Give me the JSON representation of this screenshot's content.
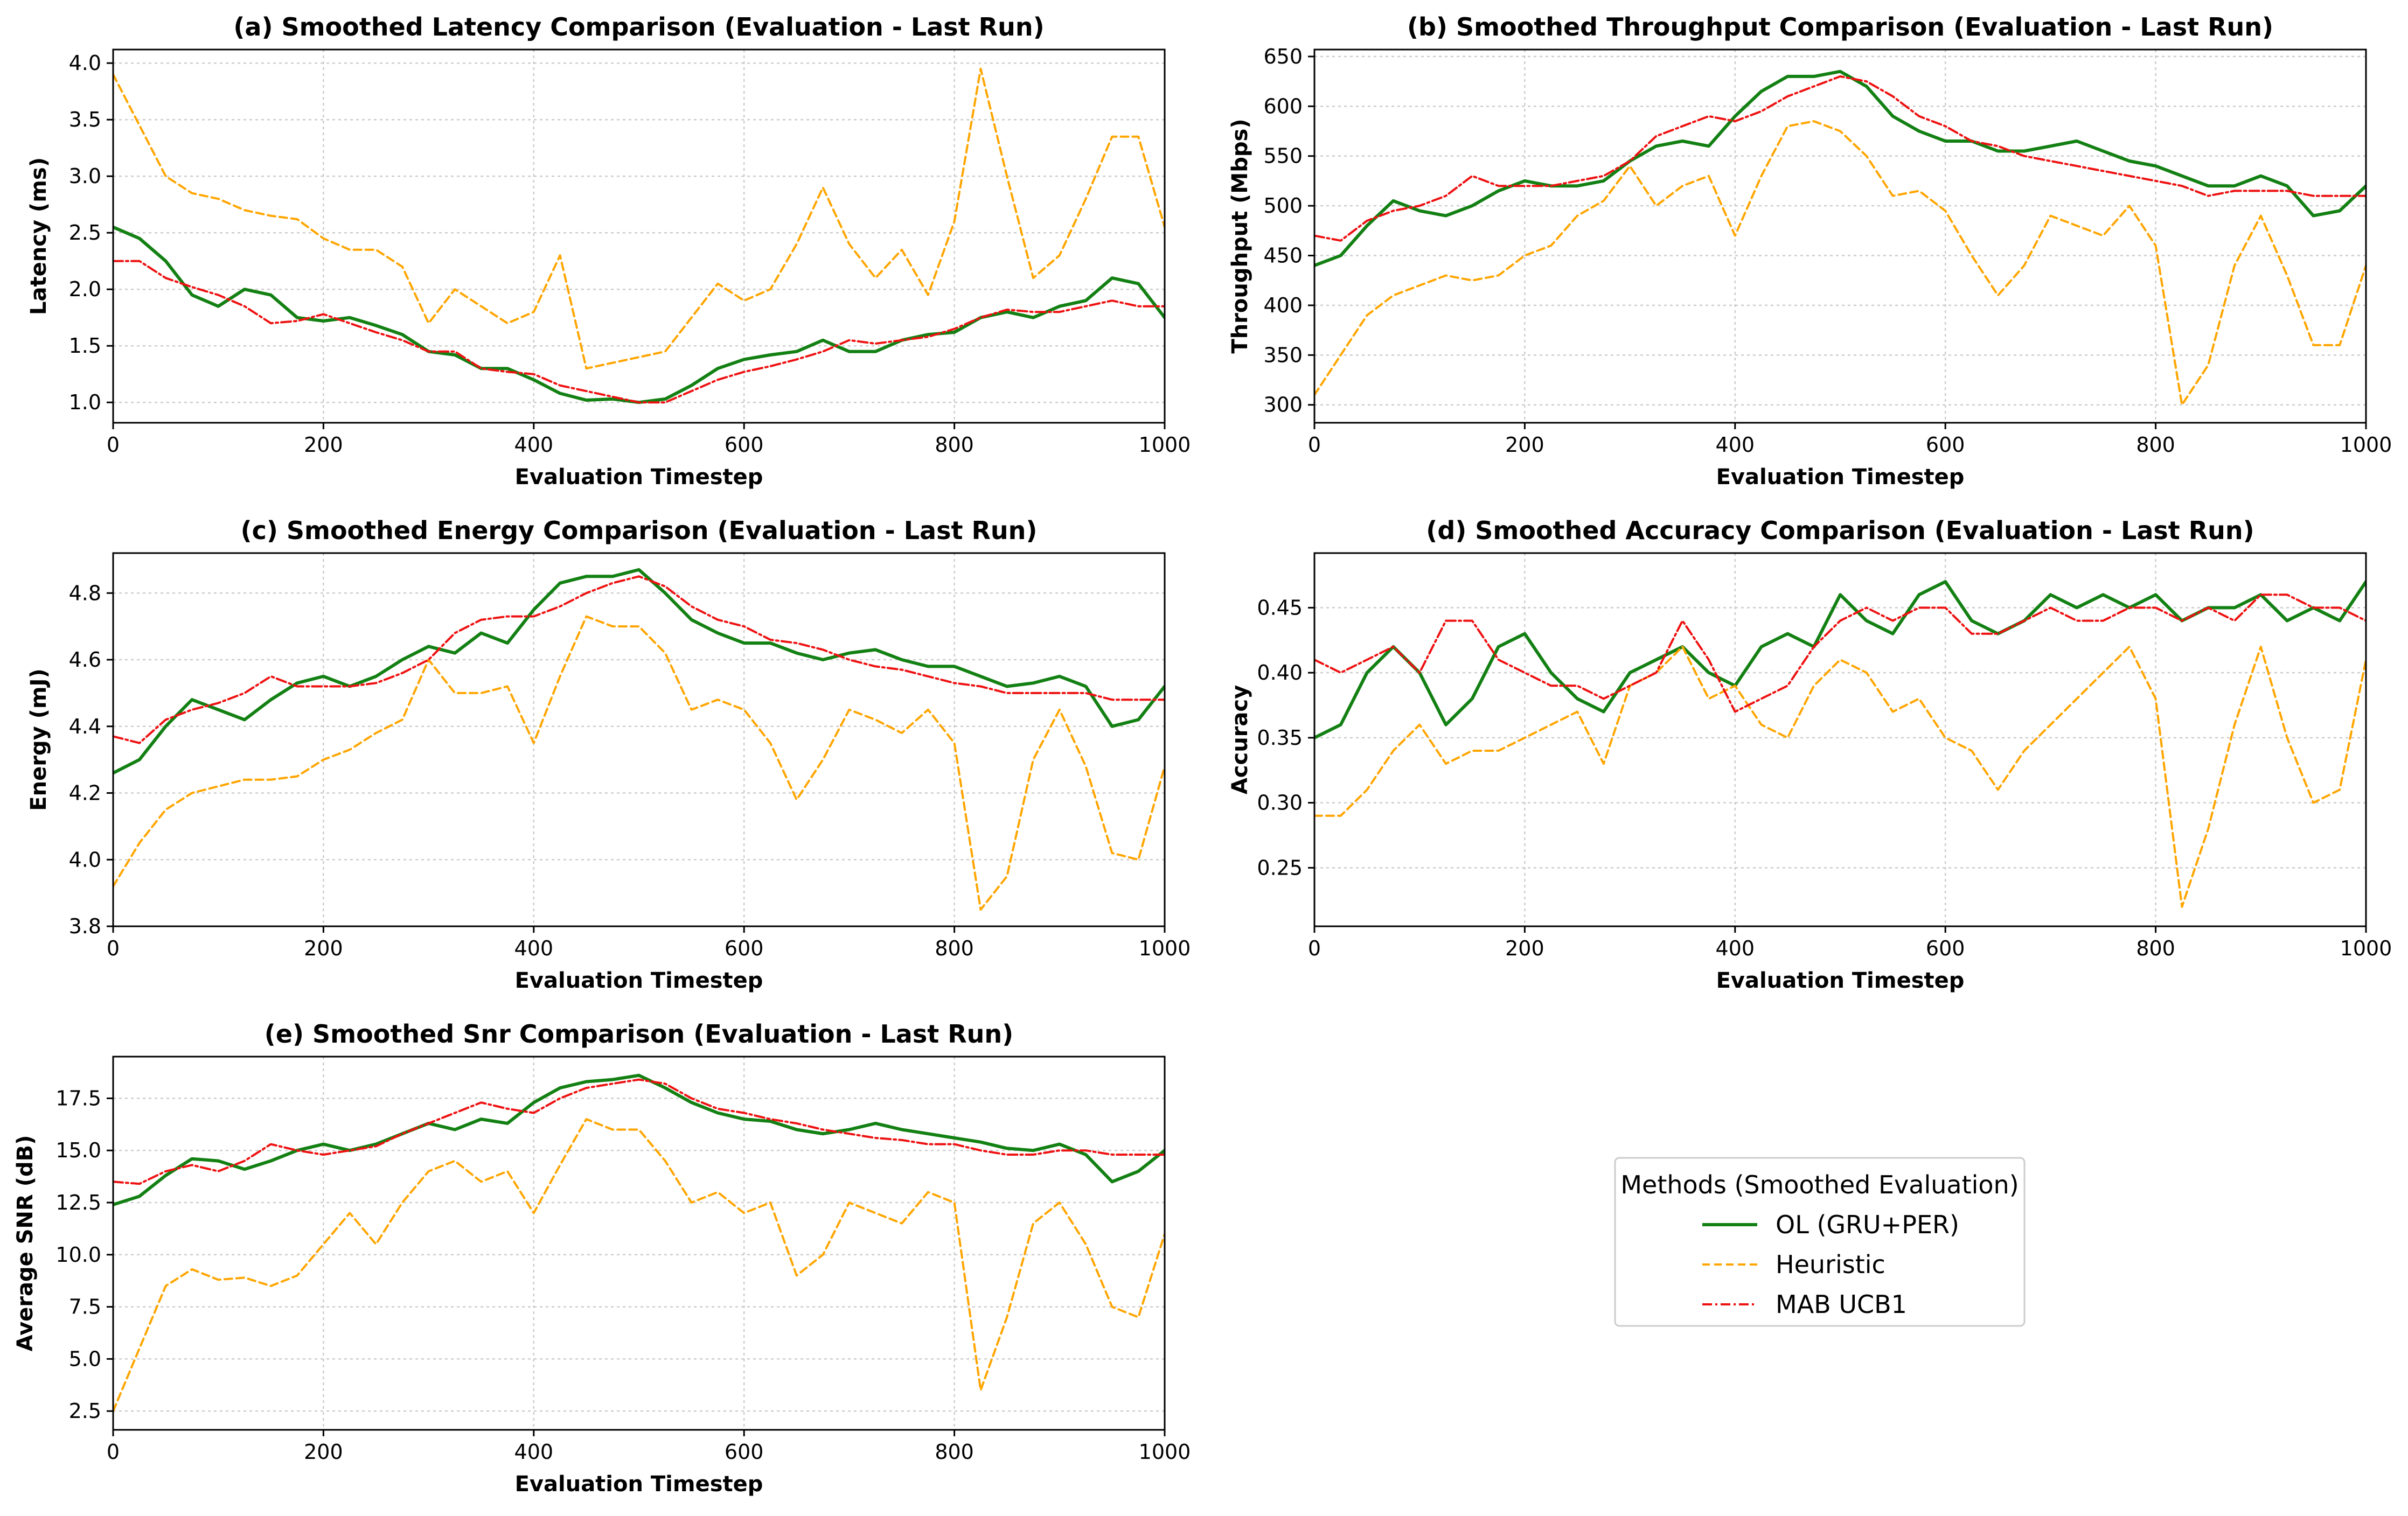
{
  "series_styles": [
    {
      "key": "ol",
      "name": "OL (GRU+PER)",
      "color": "#138013",
      "dash": "",
      "width": 6
    },
    {
      "key": "heuristic",
      "name": "Heuristic",
      "color": "#ffa500",
      "dash": "14 8",
      "width": 4
    },
    {
      "key": "mab",
      "name": "MAB UCB1",
      "color": "#ee1111",
      "dash": "18 6 4 6",
      "width": 4
    }
  ],
  "legend": {
    "title": "Methods (Smoothed Evaluation)",
    "entries": [
      "OL (GRU+PER)",
      "Heuristic",
      "MAB UCB1"
    ]
  },
  "chart_data": [
    {
      "id": "a",
      "type": "line",
      "title": "(a) Smoothed Latency Comparison (Evaluation - Last Run)",
      "xlabel": "Evaluation Timestep",
      "ylabel": "Latency (ms)",
      "xlim": [
        0,
        1000
      ],
      "ylim": [
        0.82,
        4.12
      ],
      "xticks": [
        0,
        200,
        400,
        600,
        800,
        1000
      ],
      "yticks": [
        1.0,
        1.5,
        2.0,
        2.5,
        3.0,
        3.5,
        4.0
      ],
      "ytick_labels": [
        "1.0",
        "1.5",
        "2.0",
        "2.5",
        "3.0",
        "3.5",
        "4.0"
      ],
      "x": [
        0,
        25,
        50,
        75,
        100,
        125,
        150,
        175,
        200,
        225,
        250,
        275,
        300,
        325,
        350,
        375,
        400,
        425,
        450,
        475,
        500,
        525,
        550,
        575,
        600,
        625,
        650,
        675,
        700,
        725,
        750,
        775,
        800,
        825,
        850,
        875,
        900,
        925,
        950,
        975,
        1000
      ],
      "series": [
        {
          "name": "OL (GRU+PER)",
          "values": [
            2.55,
            2.45,
            2.25,
            1.95,
            1.85,
            2.0,
            1.95,
            1.75,
            1.72,
            1.75,
            1.68,
            1.6,
            1.45,
            1.42,
            1.3,
            1.3,
            1.2,
            1.08,
            1.02,
            1.03,
            1.0,
            1.03,
            1.15,
            1.3,
            1.38,
            1.42,
            1.45,
            1.55,
            1.45,
            1.45,
            1.55,
            1.6,
            1.62,
            1.75,
            1.8,
            1.75,
            1.85,
            1.9,
            2.1,
            2.05,
            1.75
          ]
        },
        {
          "name": "Heuristic",
          "values": [
            3.9,
            3.45,
            3.0,
            2.85,
            2.8,
            2.7,
            2.65,
            2.62,
            2.45,
            2.35,
            2.35,
            2.2,
            1.7,
            2.0,
            1.85,
            1.7,
            1.8,
            2.3,
            1.3,
            1.35,
            1.4,
            1.45,
            1.75,
            2.05,
            1.9,
            2.0,
            2.4,
            2.9,
            2.4,
            2.1,
            2.35,
            1.95,
            2.6,
            3.95,
            3.0,
            2.1,
            2.3,
            2.8,
            3.35,
            3.35,
            2.55
          ]
        },
        {
          "name": "MAB UCB1",
          "values": [
            2.25,
            2.25,
            2.1,
            2.02,
            1.95,
            1.85,
            1.7,
            1.72,
            1.78,
            1.7,
            1.62,
            1.55,
            1.45,
            1.45,
            1.3,
            1.27,
            1.25,
            1.15,
            1.1,
            1.05,
            1.0,
            1.0,
            1.1,
            1.2,
            1.27,
            1.32,
            1.38,
            1.45,
            1.55,
            1.52,
            1.55,
            1.58,
            1.65,
            1.75,
            1.82,
            1.8,
            1.8,
            1.85,
            1.9,
            1.85,
            1.85
          ]
        }
      ]
    },
    {
      "id": "b",
      "type": "line",
      "title": "(b) Smoothed Throughput Comparison (Evaluation - Last Run)",
      "xlabel": "Evaluation Timestep",
      "ylabel": "Throughput (Mbps)",
      "xlim": [
        0,
        1000
      ],
      "ylim": [
        282,
        657
      ],
      "xticks": [
        0,
        200,
        400,
        600,
        800,
        1000
      ],
      "yticks": [
        300,
        350,
        400,
        450,
        500,
        550,
        600,
        650
      ],
      "ytick_labels": [
        "300",
        "350",
        "400",
        "450",
        "500",
        "550",
        "600",
        "650"
      ],
      "x": [
        0,
        25,
        50,
        75,
        100,
        125,
        150,
        175,
        200,
        225,
        250,
        275,
        300,
        325,
        350,
        375,
        400,
        425,
        450,
        475,
        500,
        525,
        550,
        575,
        600,
        625,
        650,
        675,
        700,
        725,
        750,
        775,
        800,
        825,
        850,
        875,
        900,
        925,
        950,
        975,
        1000
      ],
      "series": [
        {
          "name": "OL (GRU+PER)",
          "values": [
            440,
            450,
            480,
            505,
            495,
            490,
            500,
            515,
            525,
            520,
            520,
            525,
            545,
            560,
            565,
            560,
            590,
            615,
            630,
            630,
            635,
            620,
            590,
            575,
            565,
            565,
            555,
            555,
            560,
            565,
            555,
            545,
            540,
            530,
            520,
            520,
            530,
            520,
            490,
            495,
            520
          ]
        },
        {
          "name": "Heuristic",
          "values": [
            310,
            350,
            390,
            410,
            420,
            430,
            425,
            430,
            450,
            460,
            490,
            505,
            540,
            500,
            520,
            530,
            470,
            530,
            580,
            585,
            575,
            550,
            510,
            515,
            495,
            450,
            410,
            440,
            490,
            480,
            470,
            500,
            460,
            300,
            340,
            440,
            490,
            430,
            360,
            360,
            440
          ]
        },
        {
          "name": "MAB UCB1",
          "values": [
            470,
            465,
            485,
            495,
            500,
            510,
            530,
            520,
            520,
            520,
            525,
            530,
            545,
            570,
            580,
            590,
            585,
            595,
            610,
            620,
            630,
            625,
            610,
            590,
            580,
            565,
            560,
            550,
            545,
            540,
            535,
            530,
            525,
            520,
            510,
            515,
            515,
            515,
            510,
            510,
            510
          ]
        }
      ]
    },
    {
      "id": "c",
      "type": "line",
      "title": "(c) Smoothed Energy Comparison (Evaluation - Last Run)",
      "xlabel": "Evaluation Timestep",
      "ylabel": "Energy (mJ)",
      "xlim": [
        0,
        1000
      ],
      "ylim": [
        3.8,
        4.92
      ],
      "xticks": [
        0,
        200,
        400,
        600,
        800,
        1000
      ],
      "yticks": [
        3.8,
        4.0,
        4.2,
        4.4,
        4.6,
        4.8
      ],
      "ytick_labels": [
        "3.8",
        "4.0",
        "4.2",
        "4.4",
        "4.6",
        "4.8"
      ],
      "x": [
        0,
        25,
        50,
        75,
        100,
        125,
        150,
        175,
        200,
        225,
        250,
        275,
        300,
        325,
        350,
        375,
        400,
        425,
        450,
        475,
        500,
        525,
        550,
        575,
        600,
        625,
        650,
        675,
        700,
        725,
        750,
        775,
        800,
        825,
        850,
        875,
        900,
        925,
        950,
        975,
        1000
      ],
      "series": [
        {
          "name": "OL (GRU+PER)",
          "values": [
            4.26,
            4.3,
            4.4,
            4.48,
            4.45,
            4.42,
            4.48,
            4.53,
            4.55,
            4.52,
            4.55,
            4.6,
            4.64,
            4.62,
            4.68,
            4.65,
            4.75,
            4.83,
            4.85,
            4.85,
            4.87,
            4.8,
            4.72,
            4.68,
            4.65,
            4.65,
            4.62,
            4.6,
            4.62,
            4.63,
            4.6,
            4.58,
            4.58,
            4.55,
            4.52,
            4.53,
            4.55,
            4.52,
            4.4,
            4.42,
            4.52
          ]
        },
        {
          "name": "Heuristic",
          "values": [
            3.92,
            4.05,
            4.15,
            4.2,
            4.22,
            4.24,
            4.24,
            4.25,
            4.3,
            4.33,
            4.38,
            4.42,
            4.6,
            4.5,
            4.5,
            4.52,
            4.35,
            4.55,
            4.73,
            4.7,
            4.7,
            4.62,
            4.45,
            4.48,
            4.45,
            4.35,
            4.18,
            4.3,
            4.45,
            4.42,
            4.38,
            4.45,
            4.35,
            3.85,
            3.95,
            4.3,
            4.45,
            4.28,
            4.02,
            4.0,
            4.28
          ]
        },
        {
          "name": "MAB UCB1",
          "values": [
            4.37,
            4.35,
            4.42,
            4.45,
            4.47,
            4.5,
            4.55,
            4.52,
            4.52,
            4.52,
            4.53,
            4.56,
            4.6,
            4.68,
            4.72,
            4.73,
            4.73,
            4.76,
            4.8,
            4.83,
            4.85,
            4.82,
            4.76,
            4.72,
            4.7,
            4.66,
            4.65,
            4.63,
            4.6,
            4.58,
            4.57,
            4.55,
            4.53,
            4.52,
            4.5,
            4.5,
            4.5,
            4.5,
            4.48,
            4.48,
            4.48
          ]
        }
      ]
    },
    {
      "id": "d",
      "type": "line",
      "title": "(d) Smoothed Accuracy Comparison (Evaluation - Last Run)",
      "xlabel": "Evaluation Timestep",
      "ylabel": "Accuracy",
      "xlim": [
        0,
        1000
      ],
      "ylim": [
        0.205,
        0.492
      ],
      "xticks": [
        0,
        200,
        400,
        600,
        800,
        1000
      ],
      "yticks": [
        0.25,
        0.3,
        0.35,
        0.4,
        0.45
      ],
      "ytick_labels": [
        "0.25",
        "0.30",
        "0.35",
        "0.40",
        "0.45"
      ],
      "x": [
        0,
        25,
        50,
        75,
        100,
        125,
        150,
        175,
        200,
        225,
        250,
        275,
        300,
        325,
        350,
        375,
        400,
        425,
        450,
        475,
        500,
        525,
        550,
        575,
        600,
        625,
        650,
        675,
        700,
        725,
        750,
        775,
        800,
        825,
        850,
        875,
        900,
        925,
        950,
        975,
        1000
      ],
      "series": [
        {
          "name": "OL (GRU+PER)",
          "values": [
            0.35,
            0.36,
            0.4,
            0.42,
            0.4,
            0.36,
            0.38,
            0.42,
            0.43,
            0.4,
            0.38,
            0.37,
            0.4,
            0.41,
            0.42,
            0.4,
            0.39,
            0.42,
            0.43,
            0.42,
            0.46,
            0.44,
            0.43,
            0.46,
            0.47,
            0.44,
            0.43,
            0.44,
            0.46,
            0.45,
            0.46,
            0.45,
            0.46,
            0.44,
            0.45,
            0.45,
            0.46,
            0.44,
            0.45,
            0.44,
            0.47
          ]
        },
        {
          "name": "Heuristic",
          "values": [
            0.29,
            0.29,
            0.31,
            0.34,
            0.36,
            0.33,
            0.34,
            0.34,
            0.35,
            0.36,
            0.37,
            0.33,
            0.39,
            0.4,
            0.42,
            0.38,
            0.39,
            0.36,
            0.35,
            0.39,
            0.41,
            0.4,
            0.37,
            0.38,
            0.35,
            0.34,
            0.31,
            0.34,
            0.36,
            0.38,
            0.4,
            0.42,
            0.38,
            0.22,
            0.28,
            0.36,
            0.42,
            0.35,
            0.3,
            0.31,
            0.41
          ]
        },
        {
          "name": "MAB UCB1",
          "values": [
            0.41,
            0.4,
            0.41,
            0.42,
            0.4,
            0.44,
            0.44,
            0.41,
            0.4,
            0.39,
            0.39,
            0.38,
            0.39,
            0.4,
            0.44,
            0.41,
            0.37,
            0.38,
            0.39,
            0.42,
            0.44,
            0.45,
            0.44,
            0.45,
            0.45,
            0.43,
            0.43,
            0.44,
            0.45,
            0.44,
            0.44,
            0.45,
            0.45,
            0.44,
            0.45,
            0.44,
            0.46,
            0.46,
            0.45,
            0.45,
            0.44
          ]
        }
      ]
    },
    {
      "id": "e",
      "type": "line",
      "title": "(e) Smoothed Snr Comparison (Evaluation - Last Run)",
      "xlabel": "Evaluation Timestep",
      "ylabel": "Average SNR (dB)",
      "xlim": [
        0,
        1000
      ],
      "ylim": [
        1.6,
        19.5
      ],
      "xticks": [
        0,
        200,
        400,
        600,
        800,
        1000
      ],
      "yticks": [
        2.5,
        5.0,
        7.5,
        10.0,
        12.5,
        15.0,
        17.5
      ],
      "ytick_labels": [
        "2.5",
        "5.0",
        "7.5",
        "10.0",
        "12.5",
        "15.0",
        "17.5"
      ],
      "x": [
        0,
        25,
        50,
        75,
        100,
        125,
        150,
        175,
        200,
        225,
        250,
        275,
        300,
        325,
        350,
        375,
        400,
        425,
        450,
        475,
        500,
        525,
        550,
        575,
        600,
        625,
        650,
        675,
        700,
        725,
        750,
        775,
        800,
        825,
        850,
        875,
        900,
        925,
        950,
        975,
        1000
      ],
      "series": [
        {
          "name": "OL (GRU+PER)",
          "values": [
            12.4,
            12.8,
            13.8,
            14.6,
            14.5,
            14.1,
            14.5,
            15.0,
            15.3,
            15.0,
            15.3,
            15.8,
            16.3,
            16.0,
            16.5,
            16.3,
            17.3,
            18.0,
            18.3,
            18.4,
            18.6,
            18.0,
            17.3,
            16.8,
            16.5,
            16.4,
            16.0,
            15.8,
            16.0,
            16.3,
            16.0,
            15.8,
            15.6,
            15.4,
            15.1,
            15.0,
            15.3,
            14.8,
            13.5,
            14.0,
            15.0
          ]
        },
        {
          "name": "Heuristic",
          "values": [
            2.5,
            5.5,
            8.5,
            9.3,
            8.8,
            8.9,
            8.5,
            9.0,
            10.5,
            12.0,
            10.5,
            12.5,
            14.0,
            14.5,
            13.5,
            14.0,
            12.0,
            14.3,
            16.5,
            16.0,
            16.0,
            14.5,
            12.5,
            13.0,
            12.0,
            12.5,
            9.0,
            10.0,
            12.5,
            12.0,
            11.5,
            13.0,
            12.5,
            3.5,
            7.0,
            11.5,
            12.5,
            10.5,
            7.5,
            7.0,
            11.0
          ]
        },
        {
          "name": "MAB UCB1",
          "values": [
            13.5,
            13.4,
            14.0,
            14.3,
            14.0,
            14.5,
            15.3,
            15.0,
            14.8,
            15.0,
            15.2,
            15.8,
            16.3,
            16.8,
            17.3,
            17.0,
            16.8,
            17.5,
            18.0,
            18.2,
            18.4,
            18.2,
            17.5,
            17.0,
            16.8,
            16.5,
            16.3,
            16.0,
            15.8,
            15.6,
            15.5,
            15.3,
            15.3,
            15.0,
            14.8,
            14.8,
            15.0,
            15.0,
            14.8,
            14.8,
            14.8
          ]
        }
      ]
    }
  ]
}
